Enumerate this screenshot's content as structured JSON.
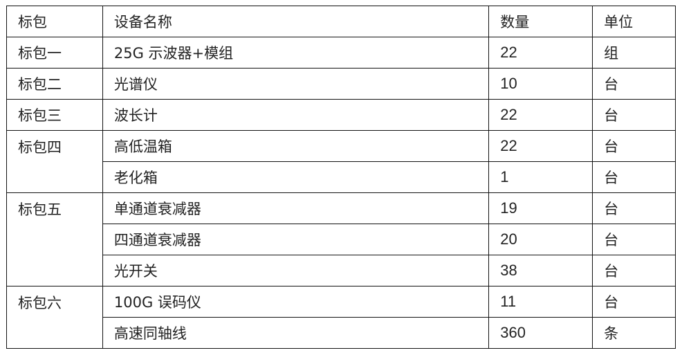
{
  "table": {
    "headers": [
      "标包",
      "设备名称",
      "数量",
      "单位"
    ],
    "groups": [
      {
        "package": "标包一",
        "items": [
          {
            "name": "25G 示波器+模组",
            "qty": "22",
            "unit": "组"
          }
        ]
      },
      {
        "package": "标包二",
        "items": [
          {
            "name": "光谱仪",
            "qty": "10",
            "unit": "台"
          }
        ]
      },
      {
        "package": "标包三",
        "items": [
          {
            "name": "波长计",
            "qty": "22",
            "unit": "台"
          }
        ]
      },
      {
        "package": "标包四",
        "items": [
          {
            "name": "高低温箱",
            "qty": "22",
            "unit": "台"
          },
          {
            "name": "老化箱",
            "qty": "1",
            "unit": "台"
          }
        ]
      },
      {
        "package": "标包五",
        "items": [
          {
            "name": "单通道衰减器",
            "qty": "19",
            "unit": "台"
          },
          {
            "name": "四通道衰减器",
            "qty": "20",
            "unit": "台"
          },
          {
            "name": "光开关",
            "qty": "38",
            "unit": "台"
          }
        ]
      },
      {
        "package": "标包六",
        "items": [
          {
            "name": "100G 误码仪",
            "qty": "11",
            "unit": "台"
          },
          {
            "name": "高速同轴线",
            "qty": "360",
            "unit": "条"
          }
        ]
      }
    ]
  }
}
